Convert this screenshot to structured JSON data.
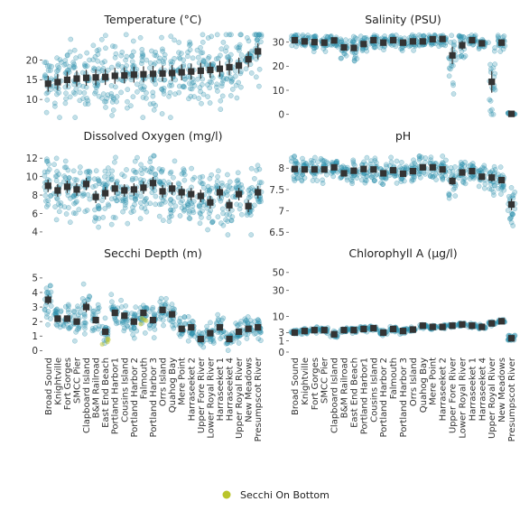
{
  "sites": [
    "Broad Sound",
    "Knightville",
    "Fort Gorges",
    "SMCC Pier",
    "Clapboard Island",
    "B&M Railroad",
    "East End Beach",
    "Portland Harbor1",
    "Cousins Island",
    "Portland Harbor 2",
    "Falmouth",
    "Portland Harbor 3",
    "Orrs Island",
    "Quahog Bay",
    "Mere Point",
    "Harraseeket 2",
    "Upper Fore River",
    "Lower Royal River",
    "Harraseeket 1",
    "Harraseeket 4",
    "Upper Royal River",
    "New Meadows",
    "Presumpscot River"
  ],
  "legend": {
    "label": "Secchi On Bottom",
    "color": "#b9c42a"
  },
  "colors": {
    "points": "#2b8fab",
    "summary": "#333333"
  },
  "chart_data": [
    {
      "type": "scatter",
      "title": "Temperature (°C)",
      "ylim": [
        5,
        27
      ],
      "yticks": [
        10,
        15,
        20
      ],
      "means": [
        14.0,
        14.4,
        15.0,
        15.3,
        15.5,
        15.6,
        15.7,
        16.0,
        16.1,
        16.3,
        16.4,
        16.5,
        16.6,
        16.7,
        16.9,
        17.1,
        17.3,
        17.5,
        17.8,
        18.2,
        18.6,
        20.2,
        22.2
      ],
      "spread": [
        4.5,
        4.5,
        4.5,
        4.5,
        4.5,
        4.5,
        4.5,
        4.5,
        4.5,
        4.5,
        4.5,
        4.5,
        4.5,
        4.5,
        4.5,
        4.5,
        4.5,
        4.5,
        4.5,
        4.5,
        4.5,
        4.5,
        4.5
      ]
    },
    {
      "type": "scatter",
      "title": "Salinity (PSU)",
      "ylim": [
        -2,
        34
      ],
      "yticks": [
        0,
        10,
        20,
        30
      ],
      "means": [
        30.8,
        30.3,
        30.0,
        29.8,
        30.7,
        27.8,
        27.6,
        29.2,
        30.8,
        29.8,
        30.8,
        29.8,
        30.3,
        30.3,
        31.2,
        31.3,
        24.5,
        28.7,
        30.8,
        29.5,
        13.5,
        29.8,
        0.2
      ],
      "spread": [
        1.5,
        1.5,
        2,
        2,
        1.5,
        3,
        3,
        2,
        1.5,
        1.5,
        1.5,
        1.5,
        1.5,
        1.5,
        1.5,
        1.5,
        8,
        4,
        1.5,
        1.5,
        10,
        2,
        0.3
      ]
    },
    {
      "type": "scatter",
      "title": "Dissolved Oxygen (mg/l)",
      "ylim": [
        3.5,
        13
      ],
      "yticks": [
        4,
        6,
        8,
        10,
        12
      ],
      "means": [
        9.0,
        8.5,
        8.9,
        8.6,
        9.2,
        7.8,
        8.2,
        8.7,
        8.5,
        8.6,
        8.8,
        9.3,
        8.4,
        8.7,
        8.3,
        8.1,
        7.9,
        7.2,
        8.3,
        6.9,
        8.1,
        6.8,
        8.3
      ],
      "spread": [
        1.5,
        1.5,
        1.5,
        1.5,
        1.5,
        1.5,
        1.5,
        1.5,
        1.5,
        1.5,
        1.5,
        1.5,
        1.5,
        1.5,
        1.5,
        1.5,
        1.5,
        1.5,
        1.5,
        1.5,
        1.5,
        1.5,
        1.5
      ]
    },
    {
      "type": "scatter",
      "title": "pH",
      "ylim": [
        6.4,
        8.45
      ],
      "yticks": [
        6.5,
        7,
        7.5,
        8
      ],
      "yticklabels": [
        "6.5",
        "7",
        "7.5",
        "8"
      ],
      "means": [
        7.98,
        7.97,
        7.97,
        7.97,
        8.02,
        7.88,
        7.94,
        7.98,
        7.97,
        7.88,
        7.95,
        7.87,
        7.93,
        8.02,
        8.02,
        7.97,
        7.7,
        7.9,
        7.93,
        7.8,
        7.78,
        7.72,
        7.15
      ],
      "spread": [
        0.15,
        0.15,
        0.15,
        0.15,
        0.15,
        0.15,
        0.15,
        0.15,
        0.15,
        0.15,
        0.15,
        0.15,
        0.15,
        0.15,
        0.15,
        0.15,
        0.2,
        0.15,
        0.15,
        0.15,
        0.2,
        0.15,
        0.3
      ]
    },
    {
      "type": "scatter",
      "title": "Secchi Depth (m)",
      "ylim": [
        -0.1,
        5.8
      ],
      "yticks": [
        0,
        1,
        2,
        3,
        4,
        5
      ],
      "means": [
        3.5,
        2.2,
        2.2,
        2.0,
        3.0,
        2.1,
        1.3,
        2.6,
        2.4,
        2.0,
        2.6,
        2.1,
        2.8,
        2.5,
        1.5,
        1.6,
        0.8,
        1.2,
        1.6,
        0.8,
        1.3,
        1.5,
        1.6
      ],
      "spread": [
        0.7,
        0.5,
        0.5,
        0.5,
        0.8,
        0.5,
        0.4,
        0.5,
        0.5,
        0.5,
        0.5,
        0.5,
        0.5,
        0.5,
        0.4,
        0.4,
        0.3,
        0.4,
        0.4,
        0.3,
        0.4,
        0.4,
        0.4
      ],
      "on_bottom": [
        0,
        0,
        0,
        0,
        0,
        0,
        1,
        0,
        0,
        0,
        1,
        0,
        0,
        0,
        0,
        0,
        0,
        0,
        0,
        0,
        0,
        0,
        0
      ]
    },
    {
      "type": "scatter",
      "title": "Chlorophyll A (μg/l)",
      "yscale": "sqrt",
      "ylim": [
        0,
        58
      ],
      "yticks": [
        0,
        1,
        3,
        10,
        30,
        50
      ],
      "means": [
        3.0,
        3.5,
        3.8,
        3.8,
        2.5,
        3.8,
        3.8,
        4.2,
        4.5,
        3.0,
        4.2,
        3.5,
        4.0,
        5.5,
        5.0,
        5.0,
        5.5,
        6.0,
        5.5,
        5.0,
        6.5,
        7.5,
        1.5
      ],
      "spread": [
        0.45,
        0.45,
        0.45,
        0.45,
        0.45,
        0.45,
        0.45,
        0.45,
        0.45,
        0.45,
        0.45,
        0.45,
        0.45,
        0.45,
        0.45,
        0.45,
        0.45,
        0.45,
        0.45,
        0.45,
        0.45,
        0.45,
        0.45
      ]
    }
  ]
}
